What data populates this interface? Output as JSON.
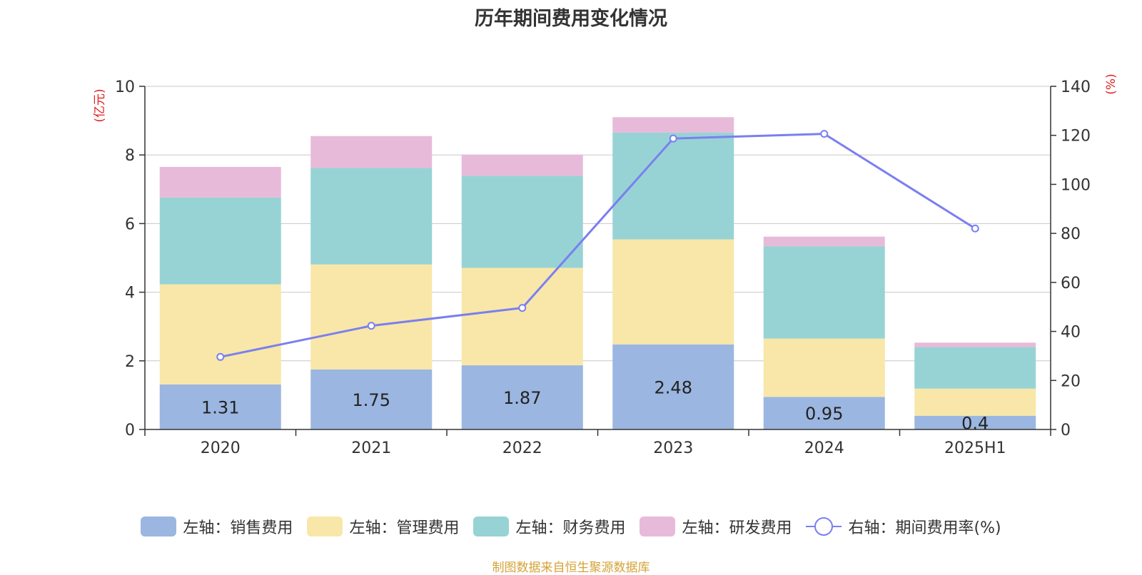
{
  "title": "历年期间费用变化情况",
  "source_note": "制图数据来自恒生聚源数据库",
  "chart_data": {
    "type": "bar",
    "stacked": true,
    "categories": [
      "2020",
      "2021",
      "2022",
      "2023",
      "2024",
      "2025H1"
    ],
    "series": [
      {
        "name": "左轴：销售费用",
        "axis": "left",
        "color": "#9bb6e0",
        "values": [
          1.31,
          1.75,
          1.87,
          2.48,
          0.95,
          0.4
        ],
        "labels": [
          "1.31",
          "1.75",
          "1.87",
          "2.48",
          "0.95",
          "0.4"
        ]
      },
      {
        "name": "左轴：管理费用",
        "axis": "left",
        "color": "#f8e7a8",
        "values": [
          2.92,
          3.06,
          2.84,
          3.06,
          1.7,
          0.79
        ]
      },
      {
        "name": "左轴：财务费用",
        "axis": "left",
        "color": "#97d3d4",
        "values": [
          2.53,
          2.81,
          2.68,
          3.11,
          2.69,
          1.21
        ]
      },
      {
        "name": "左轴：研发费用",
        "axis": "left",
        "color": "#e8bada",
        "values": [
          0.89,
          0.93,
          0.62,
          0.45,
          0.28,
          0.13
        ]
      }
    ],
    "line_series": {
      "name": "右轴：期间费用率(%)",
      "axis": "right",
      "color": "#7b7ff0",
      "values": [
        29.6,
        42.3,
        49.6,
        118.7,
        120.6,
        82
      ]
    },
    "left_axis": {
      "label": "(亿元)",
      "min": 0,
      "max": 10,
      "ticks": [
        0,
        2,
        4,
        6,
        8,
        10
      ]
    },
    "right_axis": {
      "label": "(%)",
      "min": 0,
      "max": 140,
      "ticks": [
        0,
        20,
        40,
        60,
        80,
        100,
        120,
        140
      ]
    },
    "grid": true,
    "legend_position": "bottom"
  }
}
